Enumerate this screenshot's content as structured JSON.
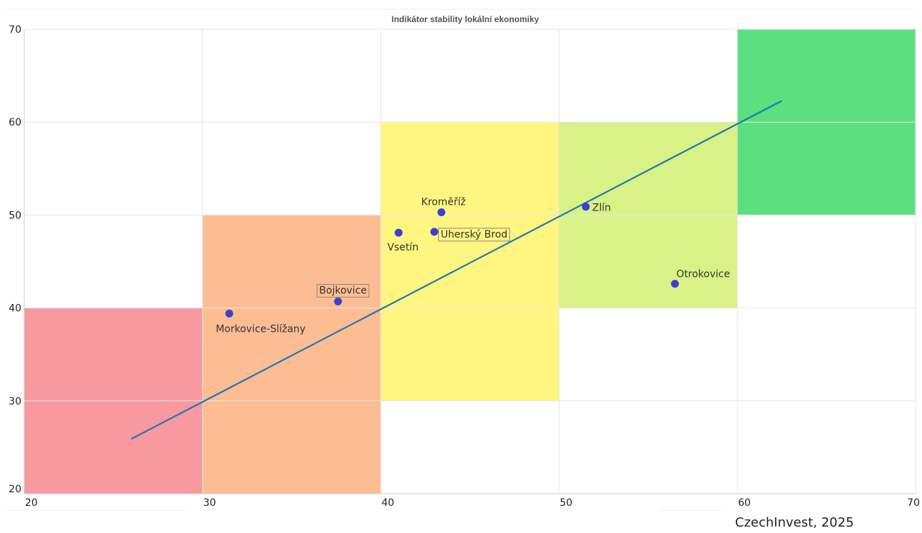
{
  "chart_data": {
    "type": "scatter",
    "title": "Indikátor stability lokální ekonomiky",
    "xlabel": "",
    "ylabel": "",
    "xlim": [
      20,
      70
    ],
    "ylim": [
      20,
      70
    ],
    "x_ticks": [
      20,
      30,
      40,
      50,
      60,
      70
    ],
    "y_ticks": [
      20,
      30,
      40,
      50,
      60,
      70
    ],
    "grid": true,
    "zones": [
      {
        "x": [
          20,
          30
        ],
        "y": [
          20,
          40
        ],
        "color": "#f7999f"
      },
      {
        "x": [
          30,
          40
        ],
        "y": [
          20,
          50
        ],
        "color": "#fdbd93"
      },
      {
        "x": [
          40,
          50
        ],
        "y": [
          30,
          60
        ],
        "color": "#fff681"
      },
      {
        "x": [
          50,
          60
        ],
        "y": [
          40,
          60
        ],
        "color": "#d9f287"
      },
      {
        "x": [
          60,
          70
        ],
        "y": [
          50,
          70
        ],
        "color": "#5ce07f"
      }
    ],
    "points": [
      {
        "label": "Kroměříž",
        "x": 43.4,
        "y": 50.3,
        "boxed": false
      },
      {
        "label": "Zlín",
        "x": 51.5,
        "y": 50.9,
        "boxed": false
      },
      {
        "label": "Vsetín",
        "x": 41.0,
        "y": 48.1,
        "boxed": false
      },
      {
        "label": "Uherský Brod",
        "x": 43.0,
        "y": 48.2,
        "boxed": true
      },
      {
        "label": "Otrokovice",
        "x": 56.5,
        "y": 42.6,
        "boxed": false
      },
      {
        "label": "Bojkovice",
        "x": 37.6,
        "y": 40.7,
        "boxed": true
      },
      {
        "label": "Morkovice-Slížany",
        "x": 31.5,
        "y": 39.4,
        "boxed": false
      }
    ],
    "trendline": {
      "x": [
        26.0,
        62.5
      ],
      "y": [
        25.9,
        62.3
      ],
      "color": "#1f77b4"
    },
    "point_color": "#3c3fd0"
  },
  "source": "CzechInvest, 2025"
}
